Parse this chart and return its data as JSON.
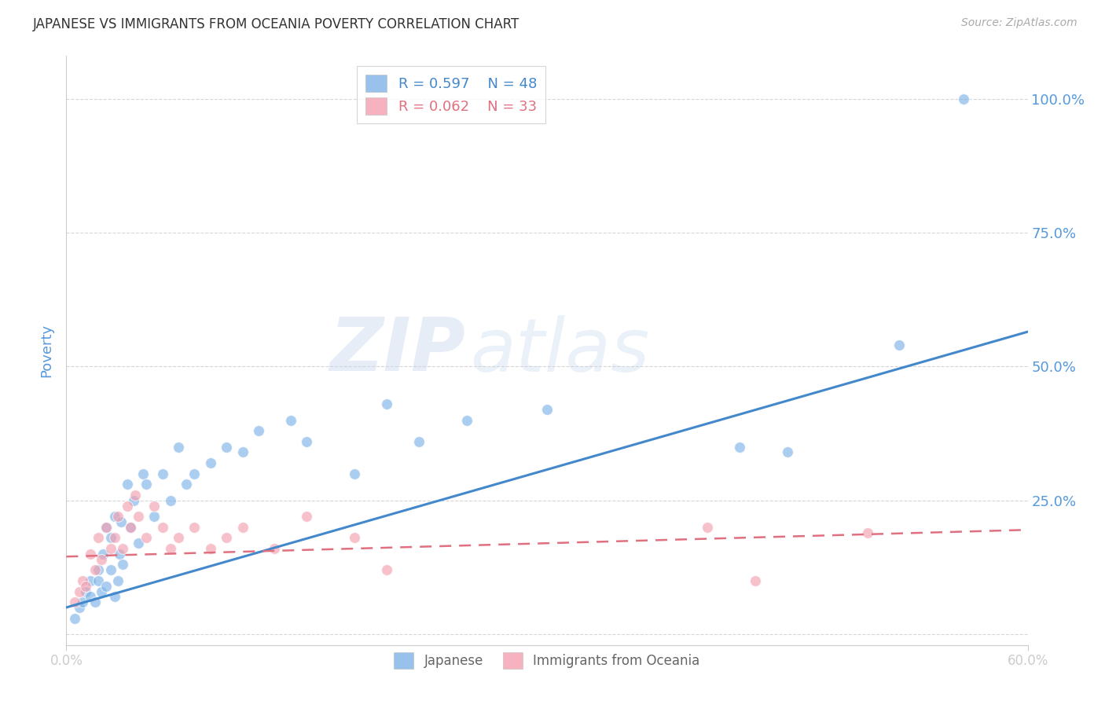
{
  "title": "JAPANESE VS IMMIGRANTS FROM OCEANIA POVERTY CORRELATION CHART",
  "source": "Source: ZipAtlas.com",
  "ylabel": "Poverty",
  "yticks": [
    0.0,
    0.25,
    0.5,
    0.75,
    1.0
  ],
  "ytick_labels": [
    "",
    "25.0%",
    "50.0%",
    "75.0%",
    "100.0%"
  ],
  "xlim": [
    0.0,
    0.6
  ],
  "ylim": [
    -0.02,
    1.08
  ],
  "legend_blue_R": "R = 0.597",
  "legend_blue_N": "N = 48",
  "legend_pink_R": "R = 0.062",
  "legend_pink_N": "N = 33",
  "blue_color": "#7EB3E8",
  "pink_color": "#F4A0B0",
  "blue_line_color": "#4488CC",
  "pink_line_color": "#E07080",
  "watermark_zip": "ZIP",
  "watermark_atlas": "atlas",
  "blue_points_x": [
    0.005,
    0.008,
    0.01,
    0.012,
    0.015,
    0.015,
    0.018,
    0.02,
    0.02,
    0.022,
    0.023,
    0.025,
    0.025,
    0.028,
    0.028,
    0.03,
    0.03,
    0.032,
    0.033,
    0.034,
    0.035,
    0.038,
    0.04,
    0.042,
    0.045,
    0.048,
    0.05,
    0.055,
    0.06,
    0.065,
    0.07,
    0.075,
    0.08,
    0.09,
    0.1,
    0.11,
    0.12,
    0.14,
    0.15,
    0.18,
    0.2,
    0.22,
    0.25,
    0.3,
    0.42,
    0.45,
    0.52,
    0.56
  ],
  "blue_points_y": [
    0.03,
    0.05,
    0.06,
    0.08,
    0.07,
    0.1,
    0.06,
    0.1,
    0.12,
    0.08,
    0.15,
    0.09,
    0.2,
    0.12,
    0.18,
    0.07,
    0.22,
    0.1,
    0.15,
    0.21,
    0.13,
    0.28,
    0.2,
    0.25,
    0.17,
    0.3,
    0.28,
    0.22,
    0.3,
    0.25,
    0.35,
    0.28,
    0.3,
    0.32,
    0.35,
    0.34,
    0.38,
    0.4,
    0.36,
    0.3,
    0.43,
    0.36,
    0.4,
    0.42,
    0.35,
    0.34,
    0.54,
    1.0
  ],
  "pink_points_x": [
    0.005,
    0.008,
    0.01,
    0.012,
    0.015,
    0.018,
    0.02,
    0.022,
    0.025,
    0.028,
    0.03,
    0.032,
    0.035,
    0.038,
    0.04,
    0.043,
    0.045,
    0.05,
    0.055,
    0.06,
    0.065,
    0.07,
    0.08,
    0.09,
    0.1,
    0.11,
    0.13,
    0.15,
    0.18,
    0.2,
    0.4,
    0.43,
    0.5
  ],
  "pink_points_y": [
    0.06,
    0.08,
    0.1,
    0.09,
    0.15,
    0.12,
    0.18,
    0.14,
    0.2,
    0.16,
    0.18,
    0.22,
    0.16,
    0.24,
    0.2,
    0.26,
    0.22,
    0.18,
    0.24,
    0.2,
    0.16,
    0.18,
    0.2,
    0.16,
    0.18,
    0.2,
    0.16,
    0.22,
    0.18,
    0.12,
    0.2,
    0.1,
    0.19
  ],
  "blue_trend_x_start": 0.0,
  "blue_trend_x_end": 0.6,
  "blue_trend_y_start": 0.05,
  "blue_trend_y_end": 0.565,
  "pink_trend_x_start": 0.0,
  "pink_trend_x_end": 0.6,
  "pink_trend_y_start": 0.145,
  "pink_trend_y_end": 0.195,
  "bg_color": "#FFFFFF",
  "grid_color": "#CCCCCC",
  "title_color": "#333333",
  "tick_label_color": "#5599DD",
  "axis_label_color": "#5599DD"
}
